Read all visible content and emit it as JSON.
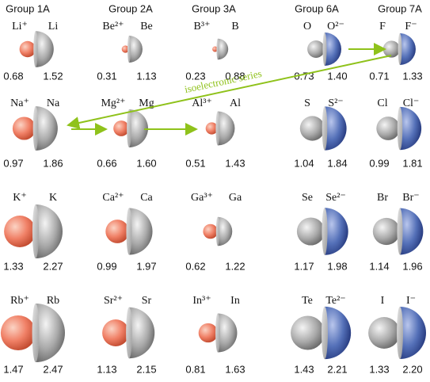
{
  "annotation": "isoelectronic series",
  "groups": [
    {
      "header": "Group 1A",
      "kind": "cation",
      "rows": [
        {
          "ion": "Li⁺",
          "atom": "Li",
          "ion_radius": "0.68",
          "atom_radius": "1.52"
        },
        {
          "ion": "Na⁺",
          "atom": "Na",
          "ion_radius": "0.97",
          "atom_radius": "1.86"
        },
        {
          "ion": "K⁺",
          "atom": "K",
          "ion_radius": "1.33",
          "atom_radius": "2.27"
        },
        {
          "ion": "Rb⁺",
          "atom": "Rb",
          "ion_radius": "1.47",
          "atom_radius": "2.47"
        }
      ]
    },
    {
      "header": "Group 2A",
      "kind": "cation",
      "rows": [
        {
          "ion": "Be²⁺",
          "atom": "Be",
          "ion_radius": "0.31",
          "atom_radius": "1.13"
        },
        {
          "ion": "Mg²⁺",
          "atom": "Mg",
          "ion_radius": "0.66",
          "atom_radius": "1.60"
        },
        {
          "ion": "Ca²⁺",
          "atom": "Ca",
          "ion_radius": "0.99",
          "atom_radius": "1.97"
        },
        {
          "ion": "Sr²⁺",
          "atom": "Sr",
          "ion_radius": "1.13",
          "atom_radius": "2.15"
        }
      ]
    },
    {
      "header": "Group 3A",
      "kind": "cation",
      "rows": [
        {
          "ion": "B³⁺",
          "atom": "B",
          "ion_radius": "0.23",
          "atom_radius": "0.88"
        },
        {
          "ion": "Al³⁺",
          "atom": "Al",
          "ion_radius": "0.51",
          "atom_radius": "1.43"
        },
        {
          "ion": "Ga³⁺",
          "atom": "Ga",
          "ion_radius": "0.62",
          "atom_radius": "1.22"
        },
        {
          "ion": "In³⁺",
          "atom": "In",
          "ion_radius": "0.81",
          "atom_radius": "1.63"
        }
      ]
    },
    {
      "header": "Group 6A",
      "kind": "anion",
      "rows": [
        {
          "ion": "O²⁻",
          "atom": "O",
          "ion_radius": "1.40",
          "atom_radius": "0.73"
        },
        {
          "ion": "S²⁻",
          "atom": "S",
          "ion_radius": "1.84",
          "atom_radius": "1.04"
        },
        {
          "ion": "Se²⁻",
          "atom": "Se",
          "ion_radius": "1.98",
          "atom_radius": "1.17"
        },
        {
          "ion": "Te²⁻",
          "atom": "Te",
          "ion_radius": "2.21",
          "atom_radius": "1.43"
        }
      ]
    },
    {
      "header": "Group 7A",
      "kind": "anion",
      "rows": [
        {
          "ion": "F⁻",
          "atom": "F",
          "ion_radius": "1.33",
          "atom_radius": "0.71"
        },
        {
          "ion": "Cl⁻",
          "atom": "Cl",
          "ion_radius": "1.81",
          "atom_radius": "0.99"
        },
        {
          "ion": "Br⁻",
          "atom": "Br",
          "ion_radius": "1.96",
          "atom_radius": "1.14"
        },
        {
          "ion": "I⁻",
          "atom": "I",
          "ion_radius": "2.20",
          "atom_radius": "1.33"
        }
      ]
    }
  ]
}
